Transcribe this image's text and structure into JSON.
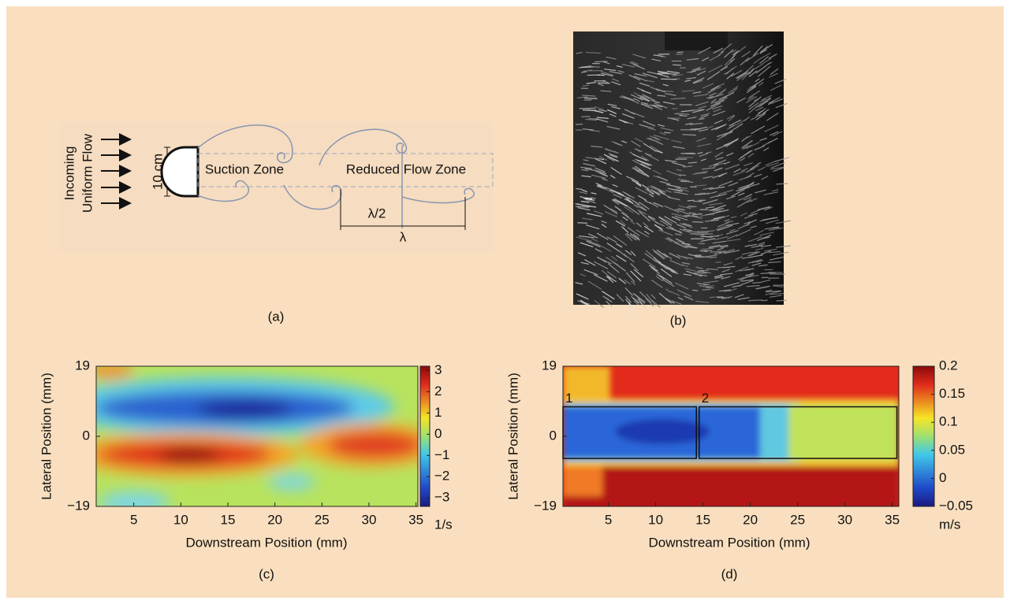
{
  "diagram": {
    "flow_label": [
      "Incoming",
      "Uniform Flow"
    ],
    "size_label": "10 cm",
    "zone_labels": [
      "Suction Zone",
      "Reduced Flow Zone"
    ],
    "half_wavelength": "λ/2",
    "wavelength": "λ",
    "caption": "(a)"
  },
  "photo": {
    "caption": "(b)"
  },
  "chart_data": [
    {
      "type": "heatmap",
      "caption": "(c)",
      "x_label": "Downstream Position (mm)",
      "y_label": "Lateral Position (mm)",
      "xlim": [
        1,
        35.2
      ],
      "xticks": [
        5,
        10,
        15,
        20,
        25,
        30,
        35
      ],
      "ylim": [
        -19,
        19
      ],
      "yticks": [
        {
          "value": -19,
          "label": "−19"
        },
        0,
        19
      ],
      "colorbar": {
        "lim": [
          -3.4,
          3.2
        ],
        "ticks": [
          {
            "value": -3,
            "label": "−3"
          },
          {
            "value": -2,
            "label": "−2"
          },
          {
            "value": -1,
            "label": "−1"
          },
          0,
          1,
          2,
          3
        ],
        "unit": "1/s"
      }
    },
    {
      "type": "heatmap",
      "caption": "(d)",
      "x_label": "Downstream Position (mm)",
      "y_label": "Lateral Position (mm)",
      "xlim": [
        0.2,
        35.7
      ],
      "xticks": [
        5,
        10,
        15,
        20,
        25,
        30,
        35
      ],
      "ylim": [
        -19,
        19
      ],
      "yticks": [
        {
          "value": -19,
          "label": "−19"
        },
        0,
        19
      ],
      "colorbar": {
        "lim": [
          -0.05,
          0.2
        ],
        "ticks": [
          {
            "value": -0.05,
            "label": "−0.05"
          },
          0,
          0.05,
          0.1,
          0.15,
          0.2
        ],
        "unit": "m/s"
      },
      "regions": [
        {
          "label": "1",
          "x": [
            0.2,
            14.3
          ],
          "y": [
            -6,
            8
          ]
        },
        {
          "label": "2",
          "x": [
            14.6,
            35.5
          ],
          "y": [
            -6,
            8
          ]
        }
      ]
    }
  ]
}
